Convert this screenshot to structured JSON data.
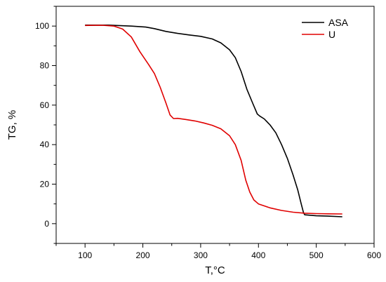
{
  "chart_data": {
    "type": "line",
    "xlabel": "T,°C",
    "ylabel": "TG, %",
    "xlim": [
      50,
      600
    ],
    "ylim": [
      -10,
      110
    ],
    "xticks": [
      100,
      200,
      300,
      400,
      500,
      600
    ],
    "yticks": [
      0,
      20,
      40,
      60,
      80,
      100
    ],
    "grid": false,
    "legend": "top-right",
    "series": [
      {
        "name": "ASA",
        "color": "#000000",
        "points": [
          [
            100,
            100.5
          ],
          [
            140,
            100.5
          ],
          [
            180,
            100
          ],
          [
            205,
            99.5
          ],
          [
            220,
            98.7
          ],
          [
            240,
            97.3
          ],
          [
            260,
            96.3
          ],
          [
            280,
            95.5
          ],
          [
            300,
            94.8
          ],
          [
            320,
            93.5
          ],
          [
            335,
            91.5
          ],
          [
            350,
            88
          ],
          [
            360,
            84
          ],
          [
            370,
            77
          ],
          [
            380,
            68
          ],
          [
            390,
            61
          ],
          [
            398,
            55.5
          ],
          [
            402,
            54.5
          ],
          [
            410,
            53
          ],
          [
            420,
            50
          ],
          [
            430,
            46
          ],
          [
            440,
            40
          ],
          [
            450,
            33
          ],
          [
            460,
            24.5
          ],
          [
            468,
            17
          ],
          [
            474,
            10
          ],
          [
            478,
            5.5
          ],
          [
            480,
            4.5
          ],
          [
            500,
            4
          ],
          [
            520,
            3.8
          ],
          [
            545,
            3.5
          ]
        ]
      },
      {
        "name": "U",
        "color": "#e00000",
        "points": [
          [
            100,
            100.3
          ],
          [
            130,
            100.4
          ],
          [
            150,
            100
          ],
          [
            165,
            98.5
          ],
          [
            180,
            94.5
          ],
          [
            195,
            87
          ],
          [
            210,
            80.5
          ],
          [
            220,
            76
          ],
          [
            230,
            69
          ],
          [
            240,
            61
          ],
          [
            247,
            55
          ],
          [
            253,
            53.2
          ],
          [
            260,
            53.3
          ],
          [
            275,
            52.7
          ],
          [
            290,
            52
          ],
          [
            305,
            51
          ],
          [
            320,
            49.8
          ],
          [
            335,
            48
          ],
          [
            350,
            44.5
          ],
          [
            360,
            40
          ],
          [
            370,
            32
          ],
          [
            378,
            22
          ],
          [
            385,
            16
          ],
          [
            392,
            12
          ],
          [
            400,
            10
          ],
          [
            410,
            9
          ],
          [
            420,
            8
          ],
          [
            440,
            6.7
          ],
          [
            460,
            5.8
          ],
          [
            480,
            5.3
          ],
          [
            500,
            5.1
          ],
          [
            520,
            5
          ],
          [
            545,
            4.9
          ]
        ]
      }
    ]
  }
}
